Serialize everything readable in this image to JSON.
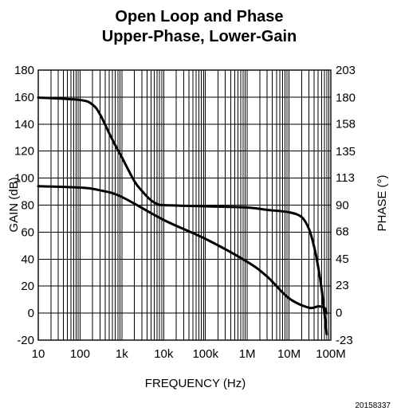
{
  "chart_data": {
    "type": "line",
    "title": [
      "Open Loop and Phase",
      "Upper-Phase, Lower-Gain"
    ],
    "xlabel": "FREQUENCY (Hz)",
    "ylabel": "GAIN (dB)",
    "y2label": "PHASE (°)",
    "x_scale": "log",
    "xlim": [
      10,
      100000000
    ],
    "ylim": [
      -20,
      180
    ],
    "y2lim": [
      -23,
      203
    ],
    "grid": true,
    "x_ticks": [
      {
        "value": 10,
        "label": "10"
      },
      {
        "value": 100,
        "label": "100"
      },
      {
        "value": 1000,
        "label": "1k"
      },
      {
        "value": 10000,
        "label": "10k"
      },
      {
        "value": 100000,
        "label": "100k"
      },
      {
        "value": 1000000,
        "label": "1M"
      },
      {
        "value": 10000000,
        "label": "10M"
      },
      {
        "value": 100000000,
        "label": "100M"
      }
    ],
    "y_ticks": [
      {
        "value": 180,
        "label": "180"
      },
      {
        "value": 160,
        "label": "160"
      },
      {
        "value": 140,
        "label": "140"
      },
      {
        "value": 120,
        "label": "120"
      },
      {
        "value": 100,
        "label": "100"
      },
      {
        "value": 80,
        "label": "80"
      },
      {
        "value": 60,
        "label": "60"
      },
      {
        "value": 40,
        "label": "40"
      },
      {
        "value": 20,
        "label": "20"
      },
      {
        "value": 0,
        "label": "0"
      },
      {
        "value": -20,
        "label": "-20"
      }
    ],
    "y2_ticks": [
      {
        "value": 203,
        "label": "203"
      },
      {
        "value": 180,
        "label": "180"
      },
      {
        "value": 158,
        "label": "158"
      },
      {
        "value": 135,
        "label": "135"
      },
      {
        "value": 113,
        "label": "113"
      },
      {
        "value": 90,
        "label": "90"
      },
      {
        "value": 68,
        "label": "68"
      },
      {
        "value": 45,
        "label": "45"
      },
      {
        "value": 23,
        "label": "23"
      },
      {
        "value": 0,
        "label": "0"
      },
      {
        "value": -23,
        "label": "-23"
      }
    ],
    "series": [
      {
        "axis": "right",
        "x": [
          10,
          100,
          200,
          300,
          500,
          700,
          1000,
          2000,
          3000,
          5000,
          7000,
          10000,
          100000,
          1000000,
          3000000,
          10000000,
          20000000,
          30000000,
          40000000,
          50000000,
          60000000,
          70000000,
          80000000
        ],
        "values": [
          180,
          178,
          174,
          166,
          150,
          140,
          130,
          110,
          102,
          94,
          91,
          90,
          89,
          88,
          86,
          84,
          80,
          70,
          55,
          38,
          20,
          0,
          -18
        ]
      },
      {
        "axis": "left",
        "x": [
          10,
          100,
          300,
          1000,
          10000,
          100000,
          1000000,
          3000000,
          10000000,
          30000000,
          50000000,
          70000000,
          80000000
        ],
        "values": [
          94,
          93,
          91,
          86,
          69,
          55,
          38,
          27,
          11,
          4,
          5,
          4,
          0
        ]
      }
    ]
  },
  "figure_code": "20158337"
}
